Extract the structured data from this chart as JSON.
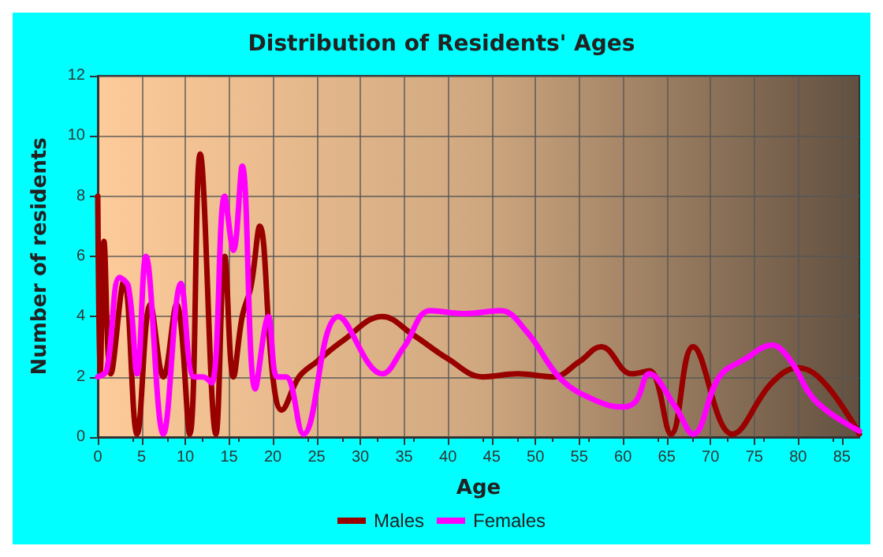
{
  "chart_data": {
    "type": "line",
    "title": "Distribution of Residents' Ages",
    "xlabel": "Age",
    "ylabel": "Number of residents",
    "xlim": [
      0,
      87
    ],
    "xticks": [
      0,
      5,
      10,
      15,
      20,
      25,
      30,
      35,
      40,
      45,
      50,
      55,
      60,
      65,
      70,
      75,
      80,
      85
    ],
    "ylim": [
      0,
      12
    ],
    "yticks": [
      0,
      2,
      4,
      6,
      8,
      10,
      12
    ],
    "grid": true,
    "legend": "bottom",
    "marker": "none",
    "line_style": "solid",
    "series": [
      {
        "name": "Males",
        "color": "#990000",
        "x": [
          0,
          0.3,
          0.7,
          1.5,
          3,
          4.5,
          6,
          7.5,
          9,
          10.5,
          11.7,
          13.5,
          14.5,
          15.5,
          16.5,
          17.5,
          18.5,
          20,
          21,
          23,
          25,
          28,
          32.5,
          36,
          40,
          44,
          48,
          52,
          55,
          57.5,
          61,
          63,
          65.5,
          68,
          72.5,
          77,
          80,
          83,
          87
        ],
        "values": [
          8,
          2.2,
          6.5,
          2.1,
          5.2,
          0.1,
          4.4,
          2,
          4.4,
          0.1,
          9.4,
          0.1,
          6,
          2,
          4,
          5,
          7,
          2,
          0.9,
          2,
          2.5,
          3.2,
          4,
          3.4,
          2.6,
          2,
          2.1,
          2,
          2.5,
          3,
          2.1,
          2.2,
          0.1,
          3,
          0.1,
          1.8,
          2.3,
          1.8,
          0.1
        ]
      },
      {
        "name": "Females",
        "color": "#ff00ff",
        "x": [
          0,
          1,
          2.5,
          3.5,
          4.5,
          5.5,
          7.5,
          9.5,
          11,
          12,
          13,
          14.5,
          15.5,
          16.5,
          18,
          19.5,
          20.5,
          21.5,
          23.5,
          27.5,
          32.5,
          35,
          38,
          42,
          46,
          49,
          53,
          57,
          60,
          61.5,
          63,
          66,
          68,
          71,
          74,
          77,
          79,
          82,
          87
        ],
        "values": [
          2,
          2.2,
          5.3,
          5,
          2.1,
          6,
          0.1,
          5.1,
          2,
          2,
          1.8,
          8,
          6.2,
          9,
          1.6,
          4,
          2,
          2,
          0.1,
          4,
          2.1,
          3,
          4.2,
          4.1,
          4.2,
          3.5,
          1.9,
          1.2,
          1,
          1.2,
          2.1,
          1,
          0.1,
          2,
          2.6,
          3.05,
          2.6,
          1.2,
          0.2
        ]
      }
    ]
  }
}
